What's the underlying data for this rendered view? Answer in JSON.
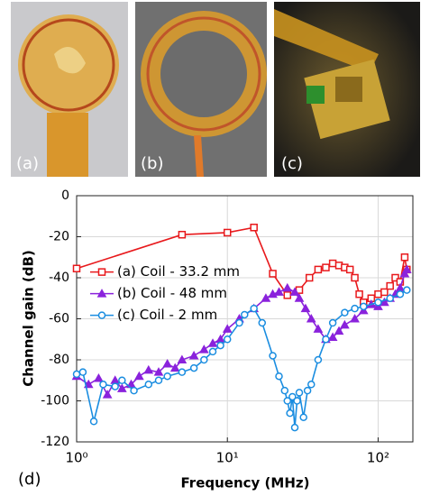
{
  "photos": [
    "(a)",
    "(b)",
    "(c)"
  ],
  "chart_data": {
    "type": "line",
    "panel_label": "(d)",
    "xlabel": "Frequency (MHz)",
    "ylabel": "Channel gain (dB)",
    "xscale": "log",
    "xlim": [
      1,
      170
    ],
    "ylim": [
      -120,
      0
    ],
    "xticks": [
      {
        "value": 1,
        "label": "10⁰"
      },
      {
        "value": 10,
        "label": "10¹"
      },
      {
        "value": 100,
        "label": "10²"
      }
    ],
    "yticks": [
      -120,
      -100,
      -80,
      -60,
      -40,
      -20,
      0
    ],
    "grid": true,
    "legend": "center left",
    "series": [
      {
        "name": "(a) Coil - 33.2 mm",
        "color": "#e8191c",
        "marker": "square",
        "x": [
          1,
          5,
          10,
          15,
          20,
          25,
          30,
          35,
          40,
          45,
          50,
          55,
          60,
          65,
          70,
          75,
          80,
          90,
          100,
          110,
          120,
          130,
          140,
          150,
          155
        ],
        "values": [
          -35.5,
          -19,
          -18,
          -15.5,
          -38,
          -48.5,
          -46,
          -40,
          -36,
          -35,
          -33,
          -34,
          -35,
          -36,
          -40,
          -48,
          -52,
          -50,
          -48,
          -47,
          -44,
          -40,
          -42,
          -30,
          -36
        ]
      },
      {
        "name": "(b) Coil - 48 mm",
        "color": "#8a22dc",
        "marker": "triangle",
        "x": [
          1,
          1.2,
          1.4,
          1.6,
          1.8,
          2,
          2.3,
          2.6,
          3,
          3.5,
          4,
          4.5,
          5,
          6,
          7,
          8,
          9,
          10,
          12,
          15,
          18,
          20,
          22,
          25,
          28,
          30,
          33,
          36,
          40,
          45,
          50,
          55,
          60,
          70,
          80,
          90,
          100,
          110,
          120,
          130,
          140,
          150,
          155
        ],
        "values": [
          -88,
          -92,
          -89,
          -97,
          -90,
          -94,
          -92,
          -88,
          -85,
          -86,
          -82,
          -84,
          -80,
          -78,
          -75,
          -72,
          -70,
          -65,
          -60,
          -55,
          -50,
          -48,
          -47,
          -45,
          -47,
          -50,
          -55,
          -60,
          -65,
          -70,
          -69,
          -66,
          -63,
          -60,
          -56,
          -53,
          -54,
          -52,
          -50,
          -48,
          -45,
          -38,
          -36
        ]
      },
      {
        "name": "(c) Coil - 2 mm",
        "color": "#1a8de0",
        "marker": "circle",
        "x": [
          1,
          1.1,
          1.3,
          1.5,
          1.8,
          2,
          2.4,
          3,
          3.5,
          4,
          5,
          6,
          7,
          8,
          9,
          10,
          12,
          13,
          15,
          17,
          20,
          22,
          24,
          25,
          26,
          27,
          28,
          29,
          30,
          32,
          34,
          36,
          40,
          45,
          50,
          60,
          70,
          80,
          100,
          120,
          140,
          155
        ],
        "values": [
          -87,
          -86,
          -110,
          -92,
          -93,
          -90,
          -95,
          -92,
          -90,
          -88,
          -86,
          -84,
          -80,
          -76,
          -73,
          -70,
          -62,
          -58,
          -55,
          -62,
          -78,
          -88,
          -95,
          -100,
          -106,
          -98,
          -113,
          -100,
          -96,
          -108,
          -95,
          -92,
          -80,
          -70,
          -62,
          -57,
          -55,
          -54,
          -52,
          -50,
          -48,
          -46
        ]
      }
    ]
  }
}
